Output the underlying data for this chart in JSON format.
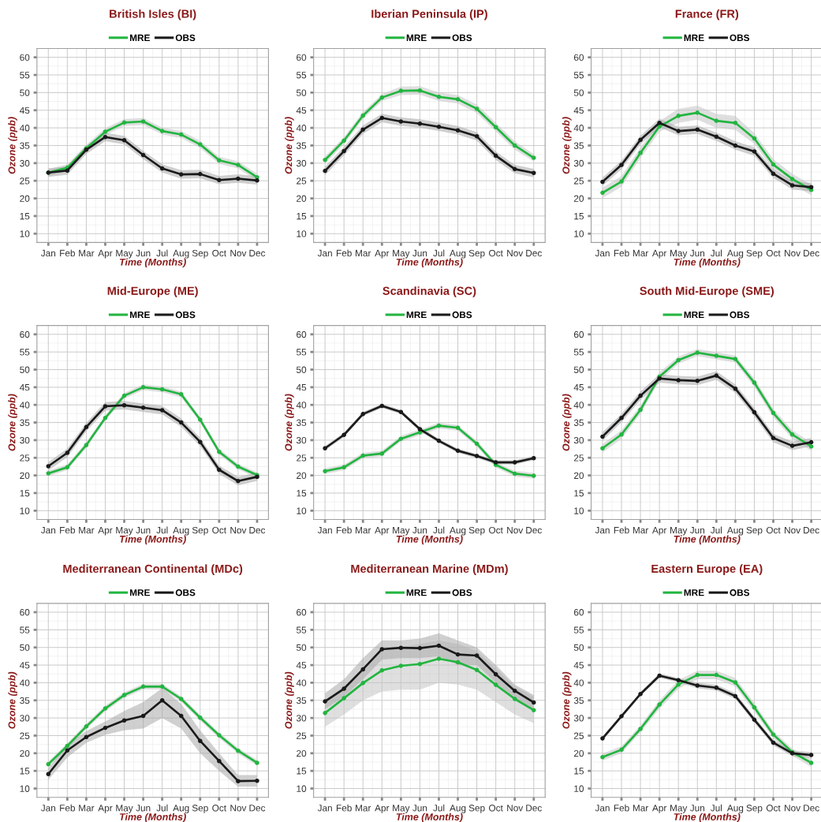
{
  "chart_data": [
    {
      "type": "line",
      "title": "British Isles (BI)",
      "xlabel": "Time (Months)",
      "ylabel": "Ozone (ppb)",
      "categories": [
        "Jan",
        "Feb",
        "Mar",
        "Apr",
        "May",
        "Jun",
        "Jul",
        "Aug",
        "Sep",
        "Oct",
        "Nov",
        "Dec"
      ],
      "ylim": [
        7.5,
        62.5
      ],
      "yticks": [
        10,
        15,
        20,
        25,
        30,
        35,
        40,
        45,
        50,
        55,
        60
      ],
      "grid": true,
      "legend": "top",
      "marker": "circle",
      "line_style": "solid",
      "series": [
        {
          "name": "MRE",
          "color": "#22b540",
          "values": [
            27.3,
            28.7,
            34.2,
            38.9,
            41.5,
            41.8,
            39.1,
            38.1,
            35.3,
            30.8,
            29.5,
            26.0
          ],
          "lower": [
            26.3,
            27.7,
            33.2,
            37.9,
            40.5,
            40.8,
            38.1,
            37.1,
            34.3,
            29.8,
            28.5,
            25.0
          ],
          "upper": [
            28.3,
            29.7,
            35.2,
            39.9,
            42.5,
            42.8,
            40.1,
            39.1,
            36.3,
            31.8,
            30.5,
            27.0
          ]
        },
        {
          "name": "OBS",
          "color": "#1a1a1a",
          "values": [
            27.3,
            27.9,
            33.8,
            37.4,
            36.5,
            32.3,
            28.5,
            26.8,
            26.9,
            25.2,
            25.6,
            25.1
          ],
          "lower": [
            26.1,
            26.7,
            32.6,
            36.2,
            35.3,
            31.1,
            27.3,
            25.6,
            25.7,
            24.0,
            24.4,
            23.9
          ],
          "upper": [
            28.5,
            29.1,
            35.0,
            38.6,
            37.7,
            33.5,
            29.7,
            28.0,
            28.1,
            26.4,
            26.8,
            26.3
          ]
        }
      ]
    },
    {
      "type": "line",
      "title": "Iberian Peninsula (IP)",
      "xlabel": "Time (Months)",
      "ylabel": "Ozone (ppb)",
      "categories": [
        "Jan",
        "Feb",
        "Mar",
        "Apr",
        "May",
        "Jun",
        "Jul",
        "Aug",
        "Sep",
        "Oct",
        "Nov",
        "Dec"
      ],
      "ylim": [
        7.5,
        62.5
      ],
      "yticks": [
        10,
        15,
        20,
        25,
        30,
        35,
        40,
        45,
        50,
        55,
        60
      ],
      "grid": true,
      "legend": "top",
      "marker": "circle",
      "line_style": "solid",
      "series": [
        {
          "name": "MRE",
          "color": "#22b540",
          "values": [
            30.9,
            36.4,
            43.5,
            48.6,
            50.5,
            50.6,
            48.8,
            48.1,
            45.4,
            40.2,
            35.0,
            31.5
          ],
          "lower": [
            29.9,
            35.4,
            42.5,
            47.6,
            49.3,
            49.4,
            47.6,
            46.9,
            44.2,
            39.0,
            33.8,
            30.5
          ],
          "upper": [
            31.9,
            37.4,
            44.5,
            49.6,
            51.7,
            51.8,
            50.0,
            49.3,
            46.6,
            41.4,
            36.2,
            32.5
          ]
        },
        {
          "name": "OBS",
          "color": "#1a1a1a",
          "values": [
            27.8,
            33.4,
            39.5,
            42.8,
            41.8,
            41.2,
            40.3,
            39.3,
            37.6,
            32.1,
            28.3,
            27.2
          ],
          "lower": [
            26.6,
            32.2,
            38.3,
            41.6,
            40.6,
            40.0,
            39.1,
            38.1,
            36.4,
            30.9,
            27.1,
            26.0
          ],
          "upper": [
            29.0,
            34.6,
            40.7,
            44.0,
            43.0,
            42.4,
            41.5,
            40.5,
            38.8,
            33.3,
            29.5,
            28.4
          ]
        }
      ]
    },
    {
      "type": "line",
      "title": "France (FR)",
      "xlabel": "Time (Months)",
      "ylabel": "Ozone (ppb)",
      "categories": [
        "Jan",
        "Feb",
        "Mar",
        "Apr",
        "May",
        "Jun",
        "Jul",
        "Aug",
        "Sep",
        "Oct",
        "Nov",
        "Dec"
      ],
      "ylim": [
        7.5,
        62.5
      ],
      "yticks": [
        10,
        15,
        20,
        25,
        30,
        35,
        40,
        45,
        50,
        55,
        60
      ],
      "grid": true,
      "legend": "top",
      "marker": "circle",
      "line_style": "solid",
      "series": [
        {
          "name": "MRE",
          "color": "#22b540",
          "values": [
            21.6,
            24.8,
            32.9,
            40.4,
            43.4,
            44.3,
            42.0,
            41.4,
            37.0,
            29.6,
            25.5,
            22.4
          ],
          "lower": [
            20.1,
            23.3,
            31.4,
            38.9,
            41.4,
            42.3,
            40.0,
            39.4,
            35.5,
            28.1,
            24.0,
            20.9
          ],
          "upper": [
            23.1,
            26.3,
            34.4,
            41.9,
            45.4,
            46.3,
            44.0,
            43.4,
            38.5,
            31.1,
            27.0,
            23.9
          ]
        },
        {
          "name": "OBS",
          "color": "#1a1a1a",
          "values": [
            24.7,
            29.5,
            36.6,
            41.4,
            39.1,
            39.5,
            37.5,
            35.0,
            33.3,
            27.0,
            23.7,
            23.2
          ],
          "lower": [
            23.5,
            28.3,
            35.4,
            40.2,
            37.9,
            38.3,
            36.3,
            33.8,
            32.1,
            25.8,
            22.5,
            22.0
          ],
          "upper": [
            25.9,
            30.7,
            37.8,
            42.6,
            40.3,
            40.7,
            38.7,
            36.2,
            34.5,
            28.2,
            24.9,
            24.4
          ]
        }
      ]
    },
    {
      "type": "line",
      "title": "Mid-Europe (ME)",
      "xlabel": "Time (Months)",
      "ylabel": "Ozone (ppb)",
      "categories": [
        "Jan",
        "Feb",
        "Mar",
        "Apr",
        "May",
        "Jun",
        "Jul",
        "Aug",
        "Sep",
        "Oct",
        "Nov",
        "Dec"
      ],
      "ylim": [
        7.5,
        62.5
      ],
      "yticks": [
        10,
        15,
        20,
        25,
        30,
        35,
        40,
        45,
        50,
        55,
        60
      ],
      "grid": true,
      "legend": "top",
      "marker": "circle",
      "line_style": "solid",
      "series": [
        {
          "name": "MRE",
          "color": "#22b540",
          "values": [
            20.6,
            22.3,
            28.6,
            36.3,
            42.6,
            45.0,
            44.4,
            43.0,
            35.8,
            26.7,
            22.5,
            20.1
          ],
          "lower": [
            19.8,
            21.5,
            27.8,
            35.5,
            41.8,
            44.2,
            43.6,
            42.2,
            35.0,
            25.9,
            21.7,
            19.3
          ],
          "upper": [
            21.4,
            23.1,
            29.4,
            37.1,
            43.4,
            45.8,
            45.2,
            43.8,
            36.6,
            27.5,
            23.3,
            20.9
          ]
        },
        {
          "name": "OBS",
          "color": "#1a1a1a",
          "values": [
            22.6,
            26.4,
            33.7,
            39.6,
            39.9,
            39.2,
            38.5,
            35.0,
            29.5,
            21.6,
            18.4,
            19.6
          ],
          "lower": [
            21.4,
            25.2,
            32.5,
            38.4,
            38.7,
            38.0,
            37.3,
            33.8,
            28.3,
            20.4,
            17.2,
            18.4
          ],
          "upper": [
            23.8,
            27.6,
            34.9,
            40.8,
            41.1,
            40.4,
            39.7,
            36.2,
            30.7,
            22.8,
            19.6,
            20.8
          ]
        }
      ]
    },
    {
      "type": "line",
      "title": "Scandinavia (SC)",
      "xlabel": "Time (Months)",
      "ylabel": "Ozone (ppb)",
      "categories": [
        "Jan",
        "Feb",
        "Mar",
        "Apr",
        "May",
        "Jun",
        "Jul",
        "Aug",
        "Sep",
        "Oct",
        "Nov",
        "Dec"
      ],
      "ylim": [
        7.5,
        62.5
      ],
      "yticks": [
        10,
        15,
        20,
        25,
        30,
        35,
        40,
        45,
        50,
        55,
        60
      ],
      "grid": true,
      "legend": "top",
      "marker": "circle",
      "line_style": "solid",
      "series": [
        {
          "name": "MRE",
          "color": "#22b540",
          "values": [
            21.2,
            22.3,
            25.6,
            26.2,
            30.4,
            32.2,
            34.1,
            33.5,
            29.0,
            23.0,
            20.5,
            19.9
          ],
          "lower": [
            20.4,
            21.5,
            24.8,
            25.4,
            29.6,
            31.4,
            33.3,
            32.7,
            28.2,
            22.2,
            19.7,
            19.1
          ],
          "upper": [
            22.0,
            23.1,
            26.4,
            27.0,
            31.2,
            33.0,
            34.9,
            34.3,
            29.8,
            23.8,
            21.3,
            20.7
          ]
        },
        {
          "name": "OBS",
          "color": "#1a1a1a",
          "values": [
            27.7,
            31.5,
            37.4,
            39.7,
            38.0,
            33.1,
            29.8,
            27.0,
            25.5,
            23.7,
            23.7,
            24.9
          ],
          "lower": [
            27.1,
            30.9,
            36.8,
            39.1,
            37.4,
            32.5,
            29.2,
            26.4,
            24.9,
            23.1,
            23.1,
            24.3
          ],
          "upper": [
            28.3,
            32.1,
            38.0,
            40.3,
            38.6,
            33.7,
            30.4,
            27.6,
            26.1,
            24.3,
            24.3,
            25.5
          ]
        }
      ]
    },
    {
      "type": "line",
      "title": "South Mid-Europe (SME)",
      "xlabel": "Time (Months)",
      "ylabel": "Ozone (ppb)",
      "categories": [
        "Jan",
        "Feb",
        "Mar",
        "Apr",
        "May",
        "Jun",
        "Jul",
        "Aug",
        "Sep",
        "Oct",
        "Nov",
        "Dec"
      ],
      "ylim": [
        7.5,
        62.5
      ],
      "yticks": [
        10,
        15,
        20,
        25,
        30,
        35,
        40,
        45,
        50,
        55,
        60
      ],
      "grid": true,
      "legend": "top",
      "marker": "circle",
      "line_style": "solid",
      "series": [
        {
          "name": "MRE",
          "color": "#22b540",
          "values": [
            27.7,
            31.6,
            38.6,
            48.0,
            52.7,
            54.8,
            53.9,
            53.0,
            46.3,
            37.7,
            31.6,
            28.2
          ],
          "lower": [
            26.5,
            30.4,
            37.4,
            46.8,
            51.7,
            53.8,
            52.9,
            52.0,
            45.1,
            36.5,
            30.4,
            27.0
          ],
          "upper": [
            28.9,
            32.8,
            39.8,
            49.2,
            53.7,
            55.8,
            54.9,
            54.0,
            47.5,
            38.9,
            32.8,
            29.4
          ]
        },
        {
          "name": "OBS",
          "color": "#1a1a1a",
          "values": [
            31.0,
            36.3,
            42.6,
            47.5,
            47.0,
            46.8,
            48.3,
            44.6,
            37.9,
            30.6,
            28.4,
            29.4
          ],
          "lower": [
            29.8,
            35.1,
            41.4,
            46.3,
            45.8,
            45.6,
            47.1,
            43.4,
            36.7,
            29.4,
            27.2,
            28.2
          ],
          "upper": [
            32.2,
            37.5,
            43.8,
            48.7,
            48.2,
            48.0,
            49.5,
            45.8,
            39.1,
            31.8,
            29.6,
            30.6
          ]
        }
      ]
    },
    {
      "type": "line",
      "title": "Mediterranean Continental (MDc)",
      "xlabel": "Time (Months)",
      "ylabel": "Ozone (ppb)",
      "categories": [
        "Jan",
        "Feb",
        "Mar",
        "Apr",
        "May",
        "Jun",
        "Jul",
        "Aug",
        "Sep",
        "Oct",
        "Nov",
        "Dec"
      ],
      "ylim": [
        7.5,
        62.5
      ],
      "yticks": [
        10,
        15,
        20,
        25,
        30,
        35,
        40,
        45,
        50,
        55,
        60
      ],
      "grid": true,
      "legend": "top",
      "marker": "circle",
      "line_style": "solid",
      "series": [
        {
          "name": "MRE",
          "color": "#22b540",
          "values": [
            16.9,
            22.1,
            27.6,
            32.7,
            36.5,
            38.9,
            38.9,
            35.4,
            30.1,
            25.1,
            20.7,
            17.3
          ],
          "lower": [
            16.1,
            21.3,
            26.8,
            31.9,
            35.7,
            38.1,
            38.1,
            34.6,
            29.3,
            24.3,
            19.9,
            16.5
          ],
          "upper": [
            17.7,
            22.9,
            28.4,
            33.5,
            37.3,
            39.7,
            39.7,
            36.2,
            30.9,
            25.9,
            21.5,
            18.1
          ]
        },
        {
          "name": "OBS",
          "color": "#1a1a1a",
          "values": [
            14.1,
            20.8,
            24.6,
            27.2,
            29.3,
            30.6,
            35.0,
            30.6,
            23.5,
            17.8,
            12.1,
            12.2
          ],
          "lower": [
            12.5,
            18.8,
            23.0,
            25.2,
            26.5,
            27.0,
            30.0,
            27.0,
            20.0,
            15.0,
            10.5,
            10.5
          ],
          "upper": [
            15.8,
            22.5,
            26.3,
            29.0,
            32.0,
            34.5,
            38.5,
            34.0,
            26.5,
            20.0,
            13.8,
            13.8
          ]
        }
      ]
    },
    {
      "type": "line",
      "title": "Mediterranean Marine (MDm)",
      "xlabel": "Time (Months)",
      "ylabel": "Ozone (ppb)",
      "categories": [
        "Jan",
        "Feb",
        "Mar",
        "Apr",
        "May",
        "Jun",
        "Jul",
        "Aug",
        "Sep",
        "Oct",
        "Nov",
        "Dec"
      ],
      "ylim": [
        7.5,
        62.5
      ],
      "yticks": [
        10,
        15,
        20,
        25,
        30,
        35,
        40,
        45,
        50,
        55,
        60
      ],
      "grid": true,
      "legend": "top",
      "marker": "circle",
      "line_style": "solid",
      "series": [
        {
          "name": "MRE",
          "color": "#22b540",
          "values": [
            31.4,
            35.6,
            39.9,
            43.5,
            44.8,
            45.3,
            46.8,
            45.8,
            43.6,
            39.4,
            35.4,
            32.2
          ],
          "lower": [
            27.5,
            31.0,
            35.0,
            37.5,
            38.0,
            38.0,
            40.0,
            39.5,
            38.0,
            34.5,
            31.0,
            28.5
          ],
          "upper": [
            35.0,
            39.0,
            44.0,
            49.0,
            50.0,
            51.0,
            52.0,
            51.0,
            49.0,
            44.0,
            39.0,
            36.0
          ]
        },
        {
          "name": "OBS",
          "color": "#1a1a1a",
          "values": [
            34.7,
            38.3,
            43.8,
            49.5,
            49.9,
            49.8,
            50.5,
            48.0,
            47.7,
            42.4,
            37.7,
            34.4
          ],
          "lower": [
            32.5,
            36.0,
            41.0,
            46.5,
            47.0,
            47.0,
            47.5,
            45.0,
            45.0,
            40.0,
            35.5,
            32.5
          ],
          "upper": [
            37.0,
            41.0,
            47.0,
            52.0,
            52.0,
            52.5,
            54.0,
            52.0,
            50.0,
            45.0,
            39.5,
            36.5
          ]
        }
      ]
    },
    {
      "type": "line",
      "title": "Eastern Europe (EA)",
      "xlabel": "Time (Months)",
      "ylabel": "Ozone (ppb)",
      "categories": [
        "Jan",
        "Feb",
        "Mar",
        "Apr",
        "May",
        "Jun",
        "Jul",
        "Aug",
        "Sep",
        "Oct",
        "Nov",
        "Dec"
      ],
      "ylim": [
        7.5,
        62.5
      ],
      "yticks": [
        10,
        15,
        20,
        25,
        30,
        35,
        40,
        45,
        50,
        55,
        60
      ],
      "grid": true,
      "legend": "top",
      "marker": "circle",
      "line_style": "solid",
      "series": [
        {
          "name": "MRE",
          "color": "#22b540",
          "values": [
            18.9,
            21.0,
            26.9,
            33.8,
            39.5,
            42.2,
            42.2,
            40.1,
            33.0,
            25.3,
            20.3,
            17.3
          ],
          "lower": [
            17.9,
            20.0,
            25.9,
            32.6,
            38.3,
            41.0,
            41.0,
            38.9,
            31.8,
            24.3,
            19.3,
            16.1
          ],
          "upper": [
            19.9,
            22.0,
            27.9,
            35.0,
            40.7,
            43.4,
            43.4,
            41.3,
            34.2,
            26.3,
            21.3,
            18.5
          ]
        },
        {
          "name": "OBS",
          "color": "#1a1a1a",
          "values": [
            24.2,
            30.5,
            36.8,
            42.0,
            40.7,
            39.2,
            38.6,
            36.2,
            29.5,
            23.0,
            20.0,
            19.5
          ],
          "lower": [
            23.6,
            29.9,
            36.2,
            41.4,
            40.1,
            38.4,
            37.8,
            35.4,
            28.7,
            22.2,
            19.2,
            18.7
          ],
          "upper": [
            24.8,
            31.1,
            37.4,
            42.6,
            41.3,
            40.0,
            39.4,
            37.0,
            30.3,
            23.8,
            20.8,
            20.3
          ]
        }
      ]
    }
  ]
}
